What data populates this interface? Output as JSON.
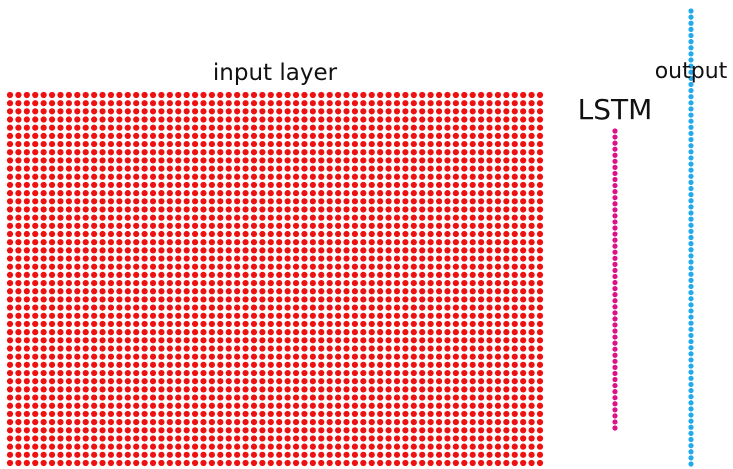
{
  "labels": {
    "input": "input layer",
    "lstm": "LSTM",
    "output": "output"
  },
  "layers": {
    "input": {
      "rows": 46,
      "cols": 64,
      "color": "#ee1111"
    },
    "lstm": {
      "units": 50,
      "color": "#dd1188"
    },
    "output": {
      "units": 75,
      "color": "#22aaee"
    }
  }
}
